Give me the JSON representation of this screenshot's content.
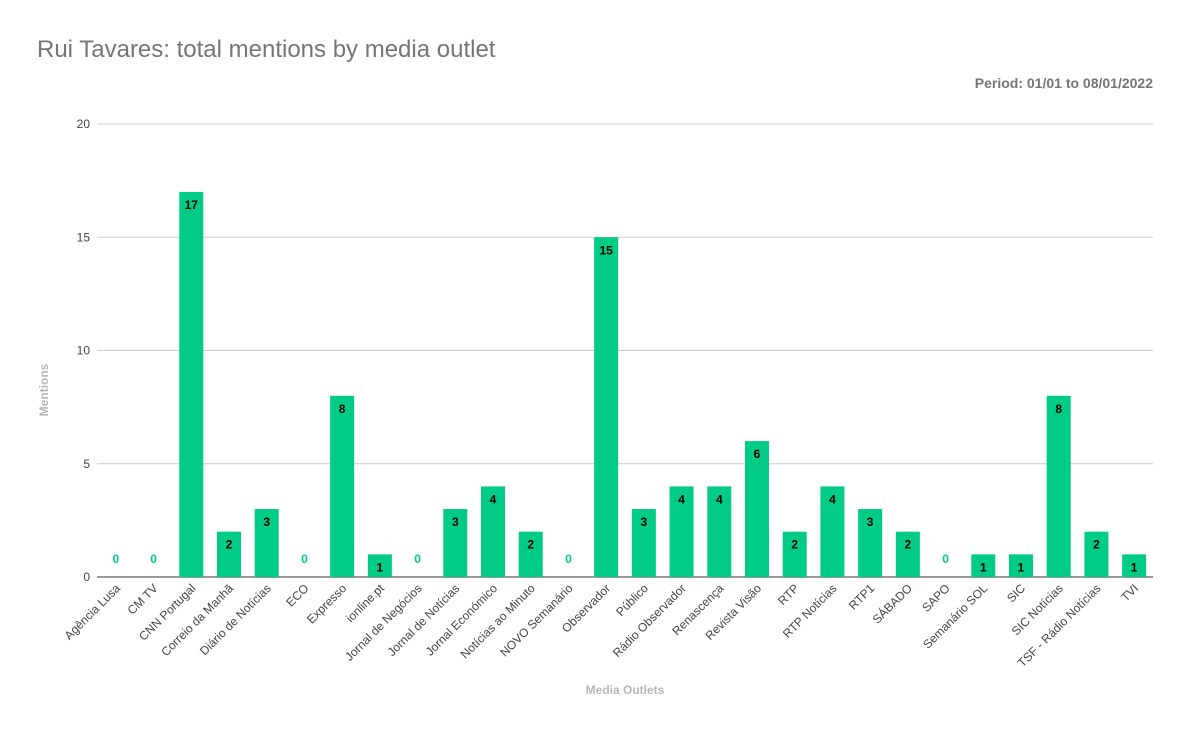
{
  "chart_data": {
    "type": "bar",
    "title": "Rui Tavares: total mentions by media outlet",
    "subtitle": "Period: 01/01 to 08/01/2022",
    "xlabel": "Media Outlets",
    "ylabel": "Mentions",
    "ylim": [
      0,
      20
    ],
    "yticks": [
      "0",
      "5",
      "10",
      "15",
      "20"
    ],
    "grid": true,
    "legend": "none",
    "categories": [
      "Agência Lusa",
      "CM TV",
      "CNN Portugal",
      "Correio da Manhã",
      "Diário de Notícias",
      "ECO",
      "Expresso",
      "ionline.pt",
      "Jornal de Negócios",
      "Jornal de Notícias",
      "Jornal Económico",
      "Notícias ao Minuto",
      "NOVO Semanário",
      "Observador",
      "Público",
      "Rádio Observador",
      "Renascença",
      "Revista Visão",
      "RTP",
      "RTP Notícias",
      "RTP1",
      "SÁBADO",
      "SAPO",
      "Semanário SOL",
      "SIC",
      "SIC Notícias",
      "TSF - Rádio Notícias",
      "TVI"
    ],
    "series": [
      {
        "values": [
          0,
          0,
          17,
          2,
          3,
          0,
          8,
          1,
          0,
          3,
          4,
          2,
          0,
          15,
          3,
          4,
          4,
          6,
          2,
          4,
          3,
          2,
          0,
          1,
          1,
          8,
          2,
          1
        ]
      }
    ],
    "colors": {
      "bar": "#00cc88",
      "value_label": "#000000",
      "zero_label": "#00cc88",
      "grid": "#cccccc",
      "axis": "#333333"
    }
  }
}
